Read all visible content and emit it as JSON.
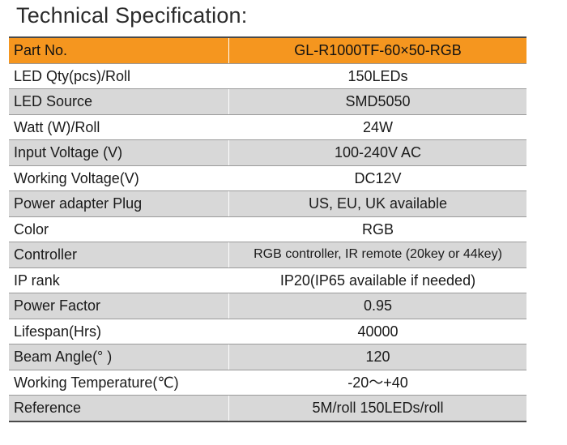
{
  "title": "Technical Specification:",
  "colors": {
    "header_bg": "#f5961f",
    "shaded_row_bg": "#d8d8d8",
    "plain_row_bg": "#ffffff"
  },
  "spec_rows": [
    {
      "label": "Part No.",
      "value": "GL-R1000TF-60×50-RGB"
    },
    {
      "label": "LED Qty(pcs)/Roll",
      "value": "150LEDs"
    },
    {
      "label": "LED Source",
      "value": "SMD5050"
    },
    {
      "label": "Watt (W)/Roll",
      "value": "24W"
    },
    {
      "label": "Input Voltage (V)",
      "value": "100-240V AC"
    },
    {
      "label": "Working Voltage(V)",
      "value": "DC12V"
    },
    {
      "label": "Power adapter Plug",
      "value": "US, EU, UK available"
    },
    {
      "label": "Color",
      "value": "RGB"
    },
    {
      "label": "Controller",
      "value": "RGB controller, IR remote (20key or 44key)"
    },
    {
      "label": "IP rank",
      "value": "IP20(IP65 available if needed)"
    },
    {
      "label": "Power Factor",
      "value": "0.95"
    },
    {
      "label": "Lifespan(Hrs)",
      "value": "40000"
    },
    {
      "label": "Beam Angle(° )",
      "value": "120"
    },
    {
      "label": "Working Temperature(℃)",
      "value": "-20～+40"
    },
    {
      "label": "Reference",
      "value": "5M/roll  150LEDs/roll"
    }
  ]
}
